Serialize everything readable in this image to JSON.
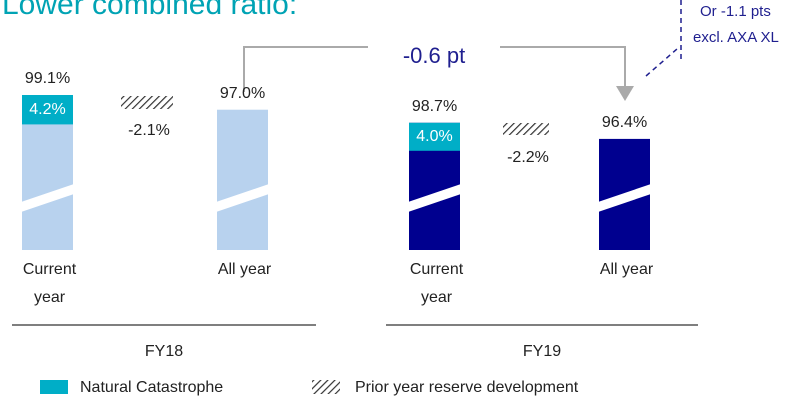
{
  "chart_data": {
    "type": "bar",
    "title": "Lower combined ratio:",
    "groups": [
      "FY18",
      "FY19"
    ],
    "categories": [
      "Current year",
      "All year",
      "Current year",
      "All year"
    ],
    "values": [
      99.1,
      97.0,
      98.7,
      96.4
    ],
    "value_labels": [
      "99.1%",
      "97.0%",
      "98.7%",
      "96.4%"
    ],
    "colors": [
      "#b8d2ee",
      "#b8d2ee",
      "#00008f",
      "#00008f"
    ],
    "natcat": {
      "name": "Natural Catastrophe",
      "color": "#00aec7",
      "values": [
        4.2,
        4.0
      ],
      "value_labels": [
        "4.2%",
        "4.0%"
      ]
    },
    "prior_year": {
      "name": "Prior year reserve development",
      "values": [
        -2.1,
        -2.2
      ],
      "value_labels": [
        "-2.1%",
        "-2.2%"
      ]
    },
    "annotations": [
      "-0.6 pt",
      "Or -1.1 pts",
      "excl. AXA XL"
    ]
  }
}
